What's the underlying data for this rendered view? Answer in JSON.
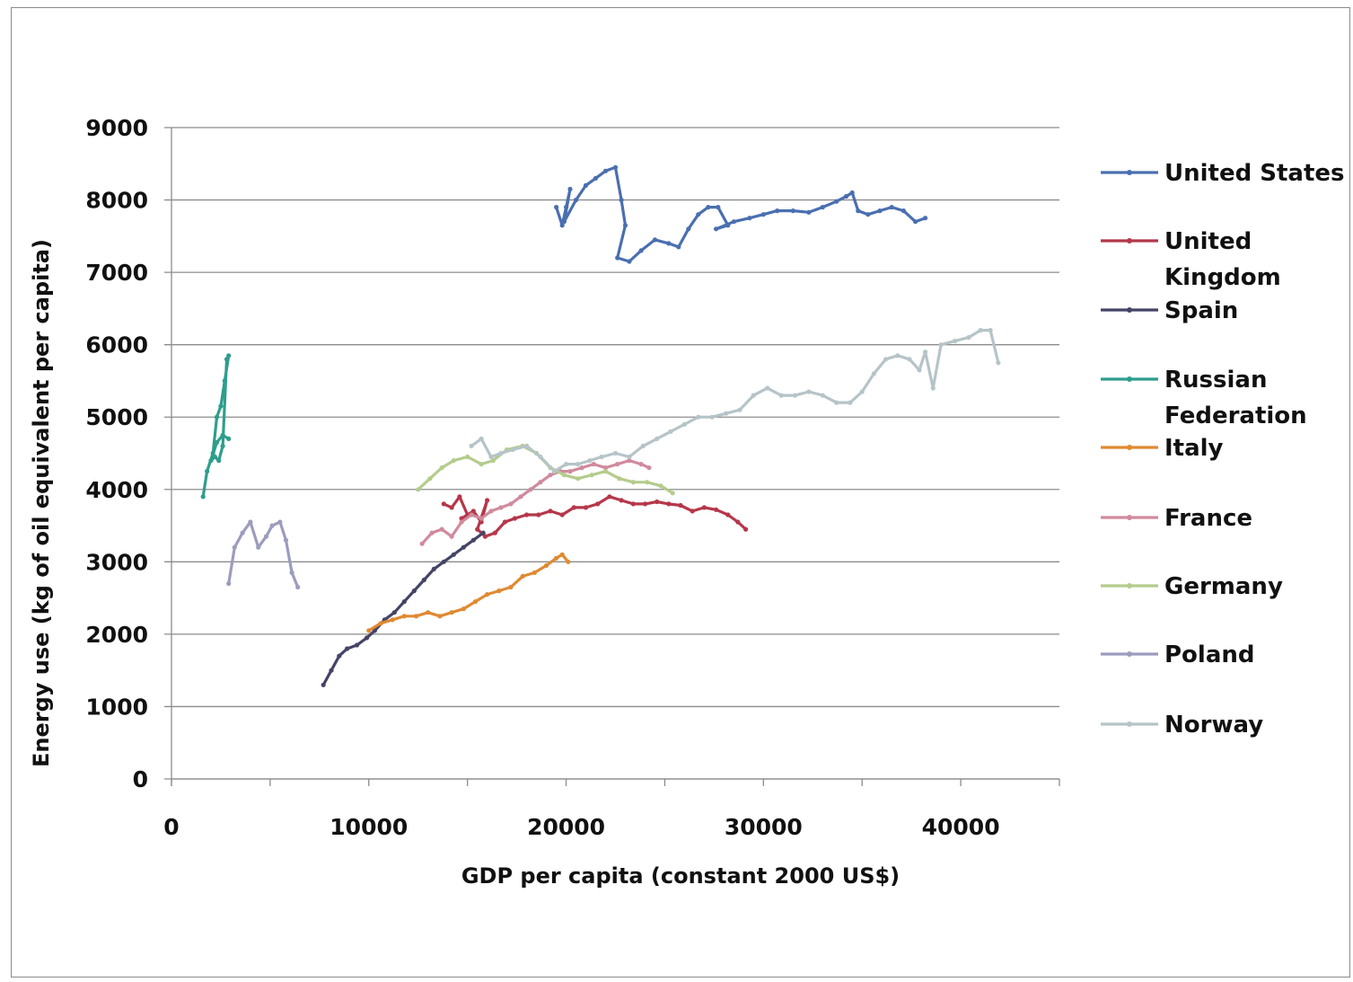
{
  "chart_data": {
    "type": "line",
    "title": "",
    "xlabel": "GDP per capita (constant 2000 US$)",
    "ylabel": "Energy use (kg of oil equivalent per capita)",
    "xlim": [
      0,
      45000
    ],
    "ylim": [
      0,
      9000
    ],
    "x_ticks": [
      "0",
      "10000",
      "20000",
      "30000",
      "40000"
    ],
    "y_ticks": [
      "0",
      "1000",
      "2000",
      "3000",
      "4000",
      "5000",
      "6000",
      "7000",
      "8000",
      "9000"
    ],
    "grid": "horizontal",
    "legend_position": "right",
    "series": [
      {
        "name": "United States",
        "color": "#4a6fb0",
        "points": [
          [
            19500,
            7900
          ],
          [
            19800,
            7650
          ],
          [
            20000,
            7900
          ],
          [
            20200,
            8150
          ],
          [
            19900,
            7700
          ],
          [
            20500,
            8000
          ],
          [
            21000,
            8200
          ],
          [
            21500,
            8300
          ],
          [
            22000,
            8400
          ],
          [
            22500,
            8450
          ],
          [
            22800,
            8000
          ],
          [
            23000,
            7650
          ],
          [
            22600,
            7200
          ],
          [
            23200,
            7150
          ],
          [
            23800,
            7300
          ],
          [
            24500,
            7450
          ],
          [
            25200,
            7400
          ],
          [
            25700,
            7350
          ],
          [
            26200,
            7600
          ],
          [
            26700,
            7800
          ],
          [
            27200,
            7900
          ],
          [
            27700,
            7900
          ],
          [
            28200,
            7650
          ],
          [
            27600,
            7600
          ],
          [
            28500,
            7700
          ],
          [
            29300,
            7750
          ],
          [
            30000,
            7800
          ],
          [
            30700,
            7850
          ],
          [
            31500,
            7850
          ],
          [
            32300,
            7830
          ],
          [
            33000,
            7900
          ],
          [
            33700,
            7980
          ],
          [
            34200,
            8050
          ],
          [
            34500,
            8100
          ],
          [
            34800,
            7850
          ],
          [
            35300,
            7800
          ],
          [
            35900,
            7850
          ],
          [
            36500,
            7900
          ],
          [
            37100,
            7850
          ],
          [
            37700,
            7700
          ],
          [
            38200,
            7750
          ]
        ]
      },
      {
        "name": "United Kingdom",
        "color": "#b5374a",
        "points": [
          [
            13800,
            3800
          ],
          [
            14200,
            3750
          ],
          [
            14600,
            3900
          ],
          [
            15000,
            3650
          ],
          [
            14700,
            3600
          ],
          [
            15300,
            3700
          ],
          [
            15700,
            3550
          ],
          [
            16000,
            3850
          ],
          [
            15500,
            3450
          ],
          [
            15900,
            3350
          ],
          [
            16400,
            3400
          ],
          [
            16900,
            3550
          ],
          [
            17400,
            3600
          ],
          [
            18000,
            3650
          ],
          [
            18600,
            3650
          ],
          [
            19200,
            3700
          ],
          [
            19800,
            3650
          ],
          [
            20400,
            3750
          ],
          [
            21000,
            3750
          ],
          [
            21600,
            3800
          ],
          [
            22200,
            3900
          ],
          [
            22800,
            3850
          ],
          [
            23400,
            3800
          ],
          [
            24000,
            3800
          ],
          [
            24600,
            3830
          ],
          [
            25200,
            3800
          ],
          [
            25800,
            3780
          ],
          [
            26400,
            3700
          ],
          [
            27000,
            3750
          ],
          [
            27600,
            3720
          ],
          [
            28200,
            3650
          ],
          [
            28700,
            3550
          ],
          [
            29100,
            3450
          ]
        ]
      },
      {
        "name": "Spain",
        "color": "#444466",
        "points": [
          [
            7700,
            1300
          ],
          [
            8100,
            1500
          ],
          [
            8500,
            1700
          ],
          [
            8900,
            1800
          ],
          [
            9400,
            1850
          ],
          [
            9900,
            1950
          ],
          [
            10300,
            2050
          ],
          [
            10800,
            2200
          ],
          [
            11300,
            2300
          ],
          [
            11800,
            2450
          ],
          [
            12300,
            2600
          ],
          [
            12800,
            2750
          ],
          [
            13300,
            2900
          ],
          [
            13800,
            3000
          ],
          [
            14300,
            3100
          ],
          [
            14800,
            3200
          ],
          [
            15300,
            3300
          ],
          [
            15800,
            3400
          ]
        ]
      },
      {
        "name": "Russian Federation",
        "color": "#2e9e8c",
        "points": [
          [
            1600,
            3900
          ],
          [
            1800,
            4250
          ],
          [
            2100,
            4500
          ],
          [
            2300,
            5000
          ],
          [
            2500,
            5150
          ],
          [
            2700,
            5500
          ],
          [
            2900,
            5850
          ],
          [
            2800,
            5800
          ],
          [
            2600,
            4600
          ],
          [
            2400,
            4400
          ],
          [
            2200,
            4450
          ],
          [
            2000,
            4400
          ],
          [
            2300,
            4650
          ],
          [
            2600,
            4750
          ],
          [
            2900,
            4700
          ]
        ]
      },
      {
        "name": "Italy",
        "color": "#e08a32",
        "points": [
          [
            10000,
            2050
          ],
          [
            10600,
            2150
          ],
          [
            11200,
            2200
          ],
          [
            11800,
            2250
          ],
          [
            12400,
            2250
          ],
          [
            13000,
            2300
          ],
          [
            13600,
            2250
          ],
          [
            14200,
            2300
          ],
          [
            14800,
            2350
          ],
          [
            15400,
            2450
          ],
          [
            16000,
            2550
          ],
          [
            16600,
            2600
          ],
          [
            17200,
            2650
          ],
          [
            17800,
            2800
          ],
          [
            18400,
            2850
          ],
          [
            19000,
            2950
          ],
          [
            19500,
            3050
          ],
          [
            19800,
            3100
          ],
          [
            20100,
            3000
          ]
        ]
      },
      {
        "name": "France",
        "color": "#d08a9c",
        "points": [
          [
            12700,
            3250
          ],
          [
            13200,
            3400
          ],
          [
            13700,
            3450
          ],
          [
            14200,
            3350
          ],
          [
            14700,
            3550
          ],
          [
            15200,
            3650
          ],
          [
            15700,
            3600
          ],
          [
            16200,
            3700
          ],
          [
            16700,
            3750
          ],
          [
            17200,
            3800
          ],
          [
            17700,
            3900
          ],
          [
            18200,
            4000
          ],
          [
            18700,
            4100
          ],
          [
            19200,
            4200
          ],
          [
            19700,
            4250
          ],
          [
            20200,
            4250
          ],
          [
            20800,
            4300
          ],
          [
            21400,
            4350
          ],
          [
            22000,
            4300
          ],
          [
            22600,
            4350
          ],
          [
            23200,
            4400
          ],
          [
            23800,
            4350
          ],
          [
            24200,
            4300
          ]
        ]
      },
      {
        "name": "Germany",
        "color": "#b4cc8c",
        "points": [
          [
            12500,
            4000
          ],
          [
            13100,
            4150
          ],
          [
            13700,
            4300
          ],
          [
            14300,
            4400
          ],
          [
            15000,
            4450
          ],
          [
            15700,
            4350
          ],
          [
            16300,
            4400
          ],
          [
            17000,
            4550
          ],
          [
            17800,
            4600
          ],
          [
            18500,
            4500
          ],
          [
            19200,
            4300
          ],
          [
            19900,
            4200
          ],
          [
            20600,
            4150
          ],
          [
            21300,
            4200
          ],
          [
            22000,
            4250
          ],
          [
            22700,
            4150
          ],
          [
            23400,
            4100
          ],
          [
            24100,
            4100
          ],
          [
            24800,
            4050
          ],
          [
            25400,
            3950
          ]
        ]
      },
      {
        "name": "Poland",
        "color": "#9c9cbe",
        "points": [
          [
            2900,
            2700
          ],
          [
            3200,
            3200
          ],
          [
            3600,
            3400
          ],
          [
            4000,
            3550
          ],
          [
            4400,
            3200
          ],
          [
            4800,
            3350
          ],
          [
            5100,
            3500
          ],
          [
            5500,
            3550
          ],
          [
            5800,
            3300
          ],
          [
            6100,
            2850
          ],
          [
            6400,
            2650
          ]
        ]
      },
      {
        "name": "Norway",
        "color": "#b6c4c8",
        "points": [
          [
            15200,
            4600
          ],
          [
            15700,
            4700
          ],
          [
            16200,
            4450
          ],
          [
            16700,
            4500
          ],
          [
            17300,
            4550
          ],
          [
            18000,
            4600
          ],
          [
            18700,
            4450
          ],
          [
            19400,
            4250
          ],
          [
            20000,
            4350
          ],
          [
            20600,
            4350
          ],
          [
            21200,
            4400
          ],
          [
            21800,
            4450
          ],
          [
            22500,
            4500
          ],
          [
            23200,
            4450
          ],
          [
            23900,
            4600
          ],
          [
            24600,
            4700
          ],
          [
            25300,
            4800
          ],
          [
            26000,
            4900
          ],
          [
            26700,
            5000
          ],
          [
            27400,
            5000
          ],
          [
            28100,
            5050
          ],
          [
            28800,
            5100
          ],
          [
            29500,
            5300
          ],
          [
            30200,
            5400
          ],
          [
            30900,
            5300
          ],
          [
            31600,
            5300
          ],
          [
            32300,
            5350
          ],
          [
            33000,
            5300
          ],
          [
            33700,
            5200
          ],
          [
            34400,
            5200
          ],
          [
            35000,
            5350
          ],
          [
            35600,
            5600
          ],
          [
            36200,
            5800
          ],
          [
            36800,
            5850
          ],
          [
            37400,
            5800
          ],
          [
            37900,
            5650
          ],
          [
            38200,
            5900
          ],
          [
            38600,
            5400
          ],
          [
            39000,
            6000
          ],
          [
            39700,
            6050
          ],
          [
            40400,
            6100
          ],
          [
            41000,
            6200
          ],
          [
            41500,
            6200
          ],
          [
            41900,
            5750
          ]
        ]
      }
    ]
  }
}
